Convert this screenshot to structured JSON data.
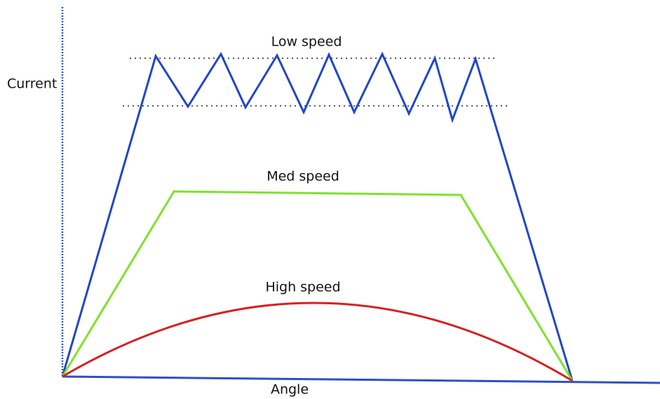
{
  "labels": {
    "y_axis": "Current",
    "x_axis": "Angle"
  },
  "curves": [
    {
      "label": "Low speed"
    },
    {
      "label": "Med speed"
    },
    {
      "label": "High speed"
    }
  ]
}
